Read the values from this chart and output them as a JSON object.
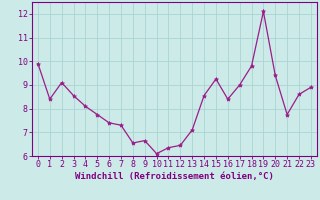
{
  "x": [
    0,
    1,
    2,
    3,
    4,
    5,
    6,
    7,
    8,
    9,
    10,
    11,
    12,
    13,
    14,
    15,
    16,
    17,
    18,
    19,
    20,
    21,
    22,
    23
  ],
  "y": [
    9.9,
    8.4,
    9.1,
    8.55,
    8.1,
    7.75,
    7.4,
    7.3,
    6.55,
    6.65,
    6.1,
    6.35,
    6.45,
    7.1,
    8.55,
    9.25,
    8.4,
    9.0,
    9.8,
    12.1,
    9.4,
    7.75,
    8.6,
    8.9
  ],
  "line_color": "#9b1d8a",
  "marker": "*",
  "marker_size": 3,
  "background_color": "#cceae8",
  "grid_color": "#aad4d2",
  "xlabel": "Windchill (Refroidissement éolien,°C)",
  "xlabel_fontsize": 6.5,
  "xlim": [
    -0.5,
    23.5
  ],
  "ylim": [
    6.0,
    12.5
  ],
  "yticks": [
    6,
    7,
    8,
    9,
    10,
    11,
    12
  ],
  "xticks": [
    0,
    1,
    2,
    3,
    4,
    5,
    6,
    7,
    8,
    9,
    10,
    11,
    12,
    13,
    14,
    15,
    16,
    17,
    18,
    19,
    20,
    21,
    22,
    23
  ],
  "tick_fontsize": 6.0,
  "tick_color": "#800080",
  "axis_color": "#800080",
  "line_width": 0.9,
  "spine_color": "#800080"
}
